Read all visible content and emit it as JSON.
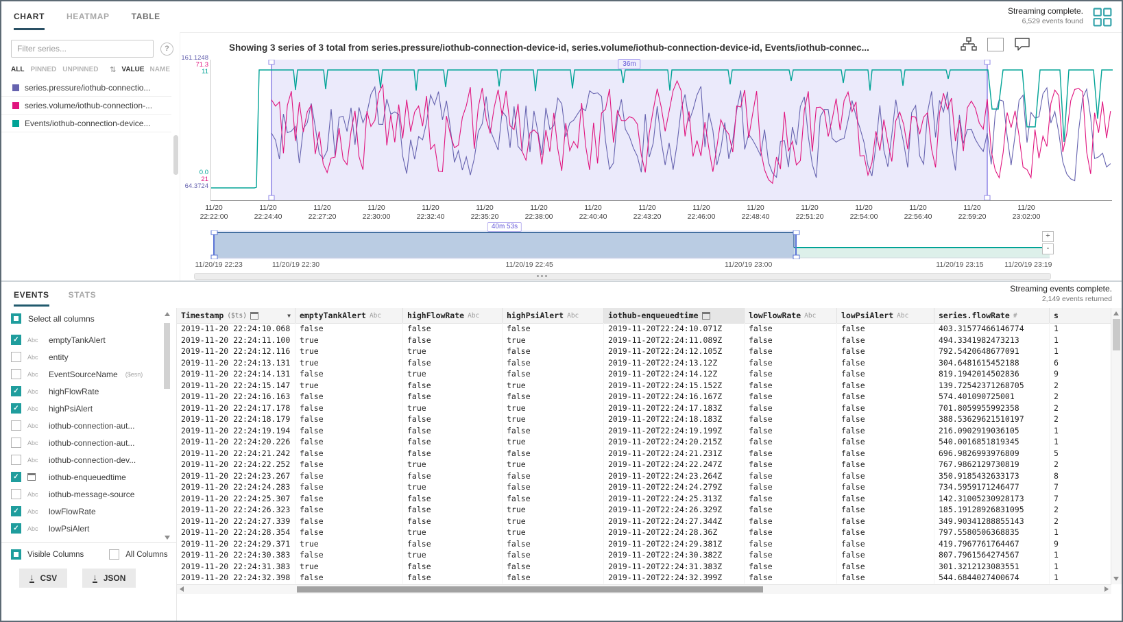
{
  "icons": {
    "help": "?",
    "sort": "⇅",
    "dropdown": "▼",
    "check": "✓"
  },
  "app": {
    "tabs": [
      "CHART",
      "HEATMAP",
      "TABLE"
    ],
    "active_tab": "CHART",
    "status": "Streaming complete.",
    "events_found": "6,529 events found"
  },
  "series_panel": {
    "filter_placeholder": "Filter series...",
    "filter_options": [
      "ALL",
      "PINNED",
      "UNPINNED"
    ],
    "active_filter": "ALL",
    "sort_options": [
      "VALUE",
      "NAME"
    ],
    "active_sort": "VALUE",
    "series": [
      {
        "label": "series.pressure/iothub-connectio...",
        "color": "#6663af"
      },
      {
        "label": "series.volume/iothub-connection-...",
        "color": "#e0147e"
      },
      {
        "label": "Events/iothub-connection-device...",
        "color": "#00a396"
      }
    ]
  },
  "chart": {
    "title": "Showing 3 series of 3 total from series.pressure/iothub-connection-device-id, series.volume/iothub-connection-device-id, Events/iothub-connec...",
    "selection_label": "36m",
    "y_axis_top": [
      {
        "text": "161.1248",
        "color": "#6663af"
      },
      {
        "text": "71.3",
        "color": "#e0147e"
      },
      {
        "text": "11",
        "color": "#00a396"
      }
    ],
    "y_axis_bottom": [
      {
        "text": "0.0",
        "color": "#00a396"
      },
      {
        "text": "21",
        "color": "#e0147e"
      },
      {
        "text": "64.3724",
        "color": "#6663af"
      }
    ],
    "x_labels": [
      {
        "date": "11/20",
        "time": "22:22:00"
      },
      {
        "date": "11/20",
        "time": "22:24:40"
      },
      {
        "date": "11/20",
        "time": "22:27:20"
      },
      {
        "date": "11/20",
        "time": "22:30:00"
      },
      {
        "date": "11/20",
        "time": "22:32:40"
      },
      {
        "date": "11/20",
        "time": "22:35:20"
      },
      {
        "date": "11/20",
        "time": "22:38:00"
      },
      {
        "date": "11/20",
        "time": "22:40:40"
      },
      {
        "date": "11/20",
        "time": "22:43:20"
      },
      {
        "date": "11/20",
        "time": "22:46:00"
      },
      {
        "date": "11/20",
        "time": "22:48:40"
      },
      {
        "date": "11/20",
        "time": "22:51:20"
      },
      {
        "date": "11/20",
        "time": "22:54:00"
      },
      {
        "date": "11/20",
        "time": "22:56:40"
      },
      {
        "date": "11/20",
        "time": "22:59:20"
      },
      {
        "date": "11/20",
        "time": "23:02:00"
      }
    ]
  },
  "navigator": {
    "range_label": "40m 53s",
    "zoom_in_label": "+",
    "zoom_out_label": "-",
    "axis_labels": [
      {
        "label": "11/20/19 22:23",
        "pos": 2.9
      },
      {
        "label": "11/20/19 22:30",
        "pos": 11.9
      },
      {
        "label": "11/20/19 22:45",
        "pos": 39.2
      },
      {
        "label": "11/20/19 23:00",
        "pos": 64.8
      },
      {
        "label": "11/20/19 23:15",
        "pos": 89.5
      },
      {
        "label": "11/20/19 23:19",
        "pos": 97.5
      }
    ]
  },
  "events_panel": {
    "tabs": [
      "EVENTS",
      "STATS"
    ],
    "active_tab": "EVENTS",
    "status": "Streaming events complete.",
    "events_returned": "2,149 events returned",
    "select_all_label": "Select all columns",
    "columns": [
      {
        "name": "emptyTankAlert",
        "type": "string",
        "checked": true
      },
      {
        "name": "entity",
        "type": "string",
        "checked": false
      },
      {
        "name": "EventSourceName",
        "suffix": "($esn)",
        "type": "string",
        "checked": false
      },
      {
        "name": "highFlowRate",
        "type": "string",
        "checked": true
      },
      {
        "name": "highPsiAlert",
        "type": "string",
        "checked": true
      },
      {
        "name": "iothub-connection-aut...",
        "type": "string",
        "checked": false
      },
      {
        "name": "iothub-connection-aut...",
        "type": "string",
        "checked": false
      },
      {
        "name": "iothub-connection-dev...",
        "type": "string",
        "checked": false
      },
      {
        "name": "iothub-enqueuedtime",
        "type": "datetime",
        "checked": true
      },
      {
        "name": "iothub-message-source",
        "type": "string",
        "checked": false
      },
      {
        "name": "lowFlowRate",
        "type": "string",
        "checked": true
      },
      {
        "name": "lowPsiAlert",
        "type": "string",
        "checked": true
      }
    ],
    "footer": {
      "visible_columns": "Visible Columns",
      "all_columns": "All Columns",
      "csv_label": "CSV",
      "json_label": "JSON"
    }
  },
  "table": {
    "headers": [
      {
        "label": "Timestamp",
        "suffix": "($ts)",
        "type": "datetime",
        "sorted": "desc"
      },
      {
        "label": "emptyTankAlert",
        "type": "string"
      },
      {
        "label": "highFlowRate",
        "type": "string"
      },
      {
        "label": "highPsiAlert",
        "type": "string"
      },
      {
        "label": "iothub-enqueuedtime",
        "type": "datetime",
        "highlighted": true
      },
      {
        "label": "lowFlowRate",
        "type": "string"
      },
      {
        "label": "lowPsiAlert",
        "type": "string"
      },
      {
        "label": "series.flowRate",
        "type": "number"
      },
      {
        "label": "s",
        "type": "",
        "clipped": true
      }
    ],
    "rows": [
      [
        "2019-11-20 22:24:10.068",
        "false",
        "false",
        "false",
        "2019-11-20T22:24:10.071Z",
        "false",
        "false",
        "403.31577466146774",
        "1"
      ],
      [
        "2019-11-20 22:24:11.100",
        "true",
        "false",
        "true",
        "2019-11-20T22:24:11.089Z",
        "false",
        "false",
        "494.3341982473213",
        "1"
      ],
      [
        "2019-11-20 22:24:12.116",
        "true",
        "true",
        "false",
        "2019-11-20T22:24:12.105Z",
        "false",
        "false",
        "792.5420648677091",
        "1"
      ],
      [
        "2019-11-20 22:24:13.131",
        "true",
        "false",
        "false",
        "2019-11-20T22:24:13.12Z",
        "false",
        "false",
        "304.6481615452188",
        "6"
      ],
      [
        "2019-11-20 22:24:14.131",
        "false",
        "true",
        "false",
        "2019-11-20T22:24:14.12Z",
        "false",
        "false",
        "819.1942014502836",
        "9"
      ],
      [
        "2019-11-20 22:24:15.147",
        "true",
        "false",
        "true",
        "2019-11-20T22:24:15.152Z",
        "false",
        "false",
        "139.72542371268705",
        "2"
      ],
      [
        "2019-11-20 22:24:16.163",
        "false",
        "false",
        "false",
        "2019-11-20T22:24:16.167Z",
        "false",
        "false",
        "574.401090725001",
        "2"
      ],
      [
        "2019-11-20 22:24:17.178",
        "false",
        "true",
        "true",
        "2019-11-20T22:24:17.183Z",
        "false",
        "false",
        "701.8059955992358",
        "2"
      ],
      [
        "2019-11-20 22:24:18.179",
        "false",
        "false",
        "true",
        "2019-11-20T22:24:18.183Z",
        "false",
        "false",
        "388.53629621510197",
        "2"
      ],
      [
        "2019-11-20 22:24:19.194",
        "false",
        "false",
        "false",
        "2019-11-20T22:24:19.199Z",
        "false",
        "false",
        "216.0902919036105",
        "1"
      ],
      [
        "2019-11-20 22:24:20.226",
        "false",
        "false",
        "true",
        "2019-11-20T22:24:20.215Z",
        "false",
        "false",
        "540.0016851819345",
        "1"
      ],
      [
        "2019-11-20 22:24:21.242",
        "false",
        "false",
        "false",
        "2019-11-20T22:24:21.231Z",
        "false",
        "false",
        "696.9826993976809",
        "5"
      ],
      [
        "2019-11-20 22:24:22.252",
        "false",
        "true",
        "true",
        "2019-11-20T22:24:22.247Z",
        "false",
        "false",
        "767.9862129730819",
        "2"
      ],
      [
        "2019-11-20 22:24:23.267",
        "false",
        "false",
        "false",
        "2019-11-20T22:24:23.264Z",
        "false",
        "false",
        "350.9185432633173",
        "8"
      ],
      [
        "2019-11-20 22:24:24.283",
        "false",
        "true",
        "false",
        "2019-11-20T22:24:24.279Z",
        "false",
        "false",
        "734.5959171246477",
        "7"
      ],
      [
        "2019-11-20 22:24:25.307",
        "false",
        "false",
        "false",
        "2019-11-20T22:24:25.313Z",
        "false",
        "false",
        "142.31005230928173",
        "7"
      ],
      [
        "2019-11-20 22:24:26.323",
        "false",
        "false",
        "true",
        "2019-11-20T22:24:26.329Z",
        "false",
        "false",
        "185.19128926831095",
        "2"
      ],
      [
        "2019-11-20 22:24:27.339",
        "false",
        "false",
        "true",
        "2019-11-20T22:24:27.344Z",
        "false",
        "false",
        "349.90341288855143",
        "2"
      ],
      [
        "2019-11-20 22:24:28.354",
        "false",
        "true",
        "true",
        "2019-11-20T22:24:28.36Z",
        "false",
        "false",
        "797.5580506368835",
        "1"
      ],
      [
        "2019-11-20 22:24:29.371",
        "true",
        "false",
        "false",
        "2019-11-20T22:24:29.381Z",
        "false",
        "false",
        "419.7967761764467",
        "9"
      ],
      [
        "2019-11-20 22:24:30.383",
        "false",
        "true",
        "false",
        "2019-11-20T22:24:30.382Z",
        "false",
        "false",
        "807.7961564274567",
        "1"
      ],
      [
        "2019-11-20 22:24:31.383",
        "true",
        "false",
        "false",
        "2019-11-20T22:24:31.383Z",
        "false",
        "false",
        "301.3212123083551",
        "1"
      ],
      [
        "2019-11-20 22:24:32.398",
        "false",
        "false",
        "false",
        "2019-11-20T22:24:32.399Z",
        "false",
        "false",
        "544.6844027400674",
        "1"
      ]
    ]
  },
  "chart_data": {
    "type": "line",
    "title": "Showing 3 series of 3 total from series.pressure/iothub-connection-device-id, series.volume/iothub-connection-device-id, Events/iothub-connec...",
    "x_range": [
      "11/20/19 22:22:00",
      "11/20/19 23:02:00"
    ],
    "x_ticks": [
      "22:22:00",
      "22:24:40",
      "22:27:20",
      "22:30:00",
      "22:32:40",
      "22:35:20",
      "22:38:00",
      "22:40:40",
      "22:43:20",
      "22:46:00",
      "22:48:40",
      "22:51:20",
      "22:54:00",
      "22:56:40",
      "22:59:20",
      "23:02:00"
    ],
    "series": [
      {
        "name": "series.pressure/iothub-connection-device-id",
        "color": "#6663af",
        "y_min": 64.3724,
        "y_max": 161.1248,
        "appearance": "dense noisy line starting 22:24"
      },
      {
        "name": "series.volume/iothub-connection-device-id",
        "color": "#e0147e",
        "y_min": 21,
        "y_max": 71.3,
        "appearance": "dense noisy line starting 22:24"
      },
      {
        "name": "Events/iothub-connection-device-id",
        "color": "#00a396",
        "y_min": 0.0,
        "y_max": 11,
        "appearance": "flat at max with periodic short dips; at min before 22:24"
      }
    ],
    "selection_duration": "36m",
    "navigator_selection_duration": "40m 53s",
    "legend_position": "left",
    "grid": false
  }
}
